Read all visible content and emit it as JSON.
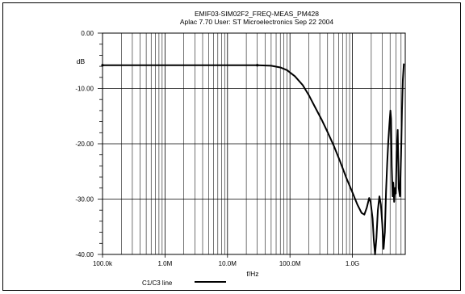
{
  "chart_data": {
    "type": "line",
    "title": "EMIF03-SIM02F2_FREQ-MEAS_PM428",
    "subtitle": "Aplac 7.70 User: ST Microelectronics  Sep 22 2004",
    "xlabel": "f/Hz",
    "ylabel": "dB",
    "xscale": "log",
    "xlim": [
      100000,
      7000000000
    ],
    "ylim": [
      -40,
      0
    ],
    "grid": true,
    "x_ticks": [
      {
        "value": 100000,
        "label": "100.0k"
      },
      {
        "value": 1000000,
        "label": "1.0M"
      },
      {
        "value": 10000000,
        "label": "10.0M"
      },
      {
        "value": 100000000,
        "label": "100.0M"
      },
      {
        "value": 1000000000,
        "label": "1.0G"
      }
    ],
    "y_ticks": [
      {
        "value": 0,
        "label": "0.00"
      },
      {
        "value": -10,
        "label": "-10.00"
      },
      {
        "value": -20,
        "label": "-20.00"
      },
      {
        "value": -30,
        "label": "-30.00"
      },
      {
        "value": -40,
        "label": "-40.00"
      }
    ],
    "legend": {
      "placement": "bottom-left",
      "label": "C1/C3 line"
    },
    "series": [
      {
        "name": "C1/C3 line",
        "color": "#000000",
        "points": [
          [
            100000,
            -5.8
          ],
          [
            1000000,
            -5.8
          ],
          [
            10000000,
            -5.8
          ],
          [
            30000000,
            -5.8
          ],
          [
            50000000,
            -5.9
          ],
          [
            70000000,
            -6.2
          ],
          [
            90000000,
            -6.7
          ],
          [
            120000000,
            -7.8
          ],
          [
            160000000,
            -9.4
          ],
          [
            200000000,
            -11.2
          ],
          [
            250000000,
            -13.3
          ],
          [
            320000000,
            -15.6
          ],
          [
            400000000,
            -17.9
          ],
          [
            500000000,
            -20.3
          ],
          [
            630000000,
            -23.1
          ],
          [
            800000000,
            -26.2
          ],
          [
            1000000000,
            -28.8
          ],
          [
            1200000000,
            -31.0
          ],
          [
            1400000000,
            -32.5
          ],
          [
            1550000000,
            -32.8
          ],
          [
            1700000000,
            -31.5
          ],
          [
            1850000000,
            -29.8
          ],
          [
            1950000000,
            -30.5
          ],
          [
            2100000000,
            -33.5
          ],
          [
            2200000000,
            -37.5
          ],
          [
            2300000000,
            -40.0
          ],
          [
            2420000000,
            -37.0
          ],
          [
            2550000000,
            -32.0
          ],
          [
            2700000000,
            -29.5
          ],
          [
            2850000000,
            -31.0
          ],
          [
            3000000000,
            -34.5
          ],
          [
            3150000000,
            -39.0
          ],
          [
            3300000000,
            -36.0
          ],
          [
            3450000000,
            -28.5
          ],
          [
            3600000000,
            -23.5
          ],
          [
            3750000000,
            -19.5
          ],
          [
            3900000000,
            -16.5
          ],
          [
            4050000000,
            -14.0
          ],
          [
            4150000000,
            -15.5
          ],
          [
            4250000000,
            -24.0
          ],
          [
            4400000000,
            -29.5
          ],
          [
            4500000000,
            -27.0
          ],
          [
            4650000000,
            -30.5
          ],
          [
            4800000000,
            -28.0
          ],
          [
            4950000000,
            -29.0
          ],
          [
            5100000000,
            -21.5
          ],
          [
            5300000000,
            -17.5
          ],
          [
            5500000000,
            -28.0
          ],
          [
            5750000000,
            -29.5
          ],
          [
            6000000000,
            -22.0
          ],
          [
            6200000000,
            -14.0
          ],
          [
            6400000000,
            -8.5
          ],
          [
            6650000000,
            -5.5
          ]
        ]
      }
    ]
  }
}
